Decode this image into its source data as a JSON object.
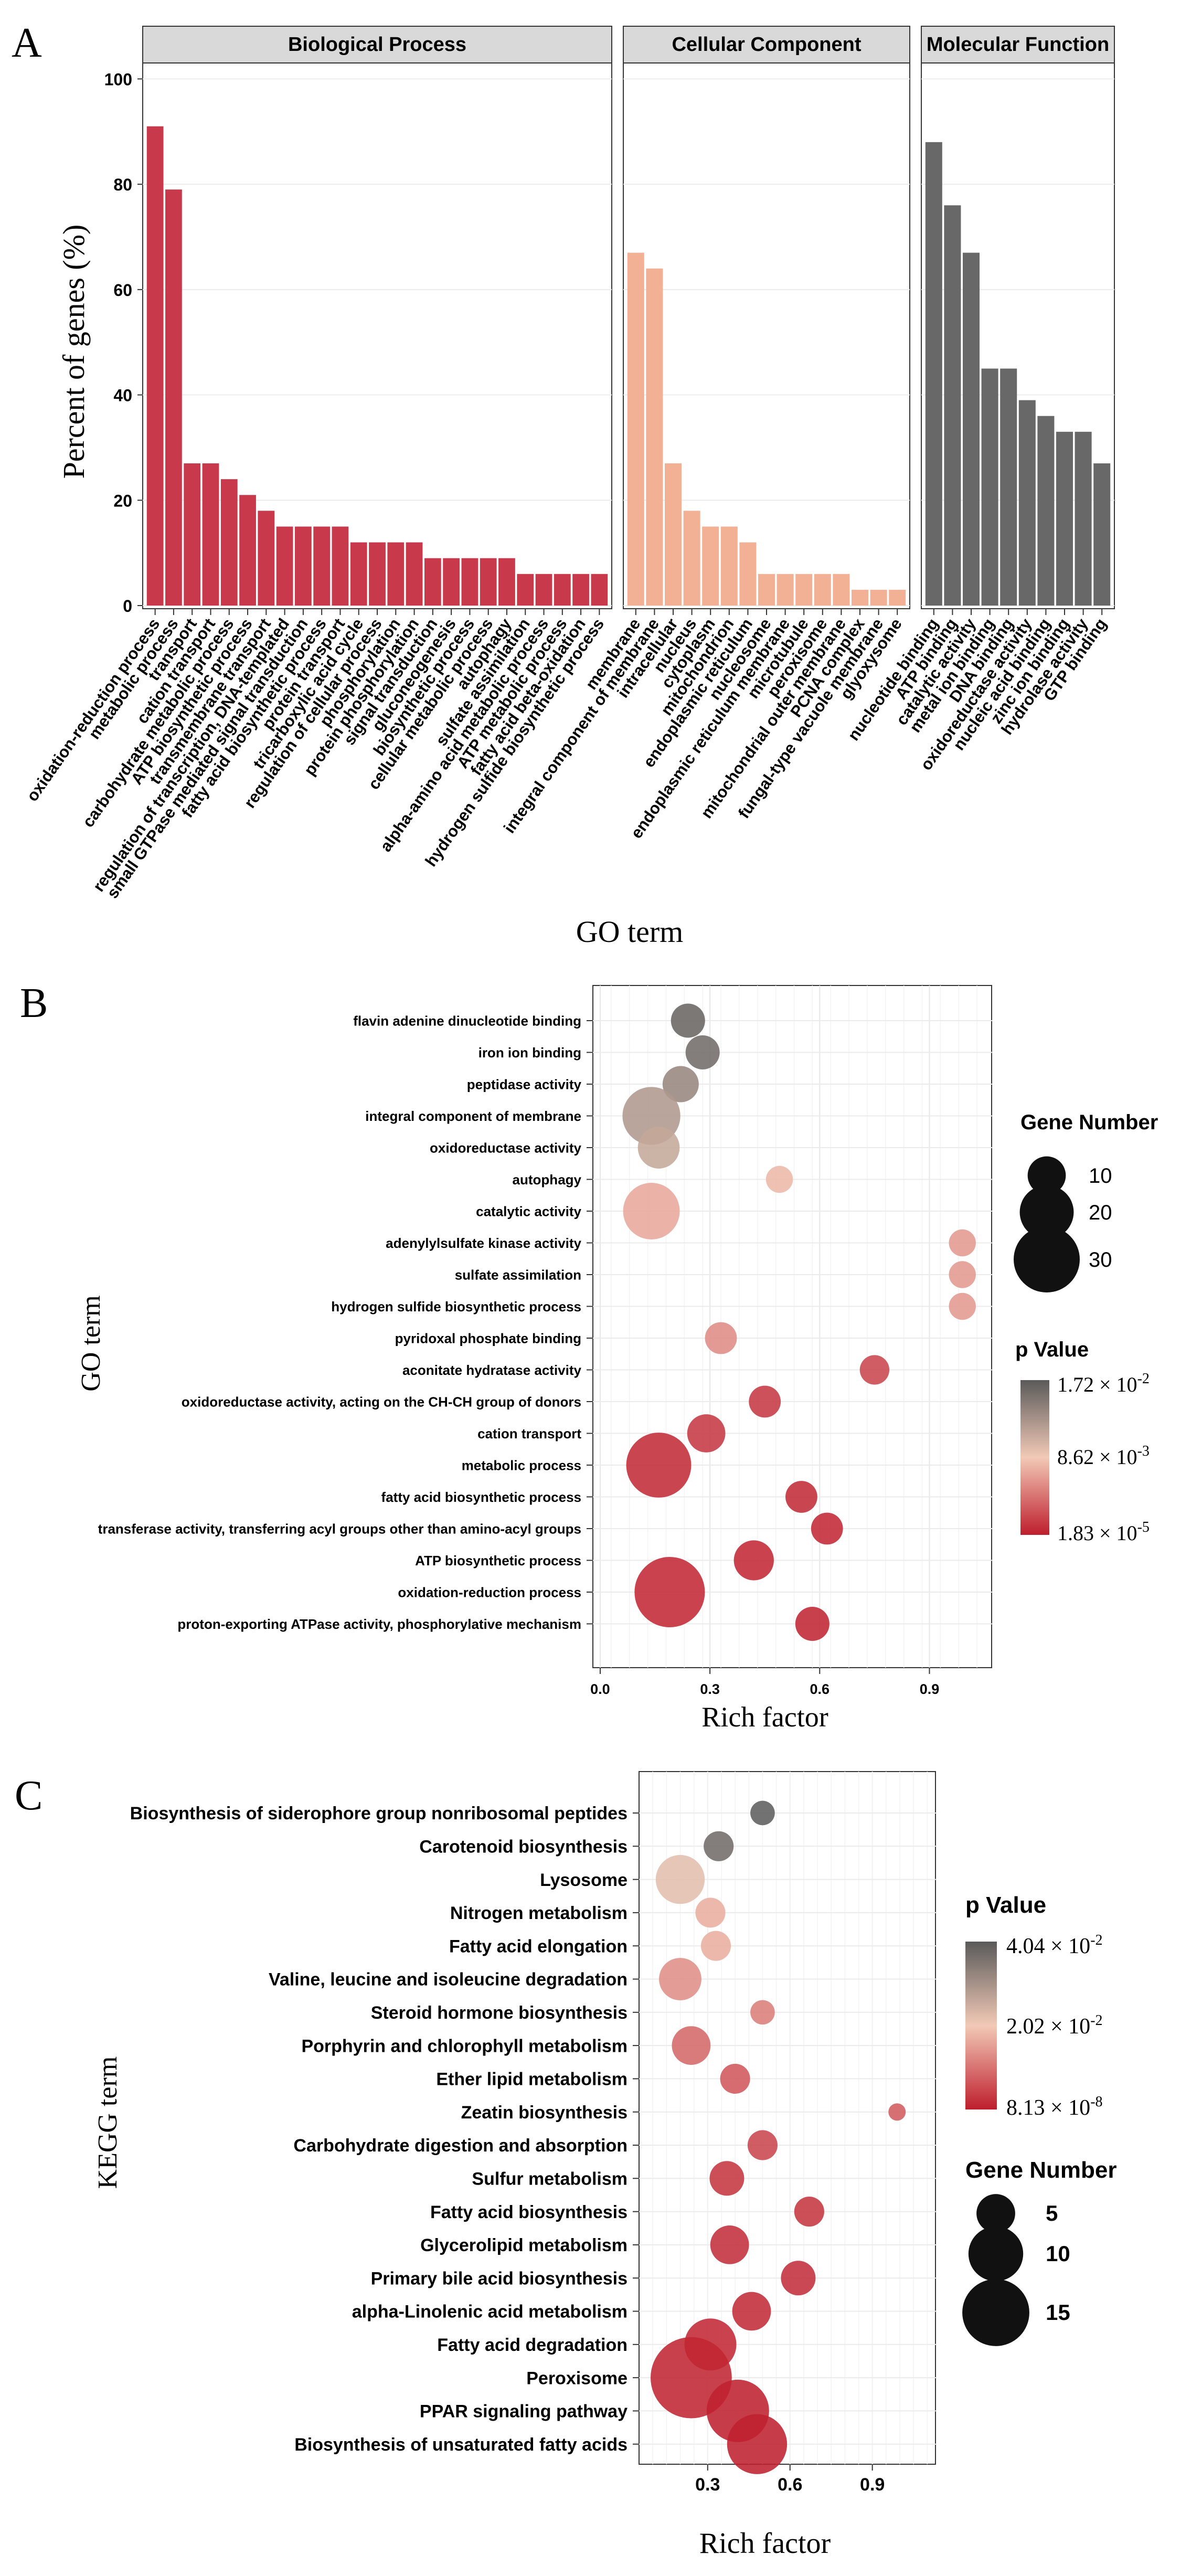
{
  "colors": {
    "bp": "#c8394b",
    "cc": "#f2b095",
    "mf": "#686868",
    "strip_bg": "#d9d9d9",
    "grid": "#ebebeb",
    "grad_high": "#5a5a5a",
    "grad_mid": "#f2c9b6",
    "grad_low": "#be1e2d"
  },
  "chart_data": [
    {
      "panel": "A",
      "type": "bar",
      "title": "",
      "xlabel": "GO term",
      "ylabel": "Percent of genes (%)",
      "ylim": [
        0,
        100
      ],
      "yticks": [
        "0",
        "20",
        "40",
        "60",
        "80",
        "100"
      ],
      "facets": [
        {
          "name": "Biological Process",
          "color": "#c8394b",
          "categories": [
            "oxidation-reduction process",
            "metabolic process",
            "transport",
            "cation transport",
            "carbohydrate metabolic process",
            "ATP biosynthetic process",
            "transmembrane transport",
            "regulation of transcription, DNA-templated",
            "small GTPase mediated signal transduction",
            "fatty acid biosynthetic process",
            "protein transport",
            "tricarboxylic acid cycle",
            "regulation of cellular process",
            "phosphorylation",
            "protein phosphorylation",
            "signal transduction",
            "gluconeogenesis",
            "biosynthetic process",
            "cellular metabolic process",
            "autophagy",
            "sulfate assimilation",
            "alpha-amino acid metabolic process",
            "ATP metabolic process",
            "fatty acid beta-oxidation",
            "hydrogen sulfide biosynthetic process"
          ],
          "values": [
            91,
            79,
            27,
            27,
            24,
            21,
            18,
            15,
            15,
            15,
            15,
            12,
            12,
            12,
            12,
            9,
            9,
            9,
            9,
            9,
            6,
            6,
            6,
            6,
            6
          ]
        },
        {
          "name": "Cellular Component",
          "color": "#f2b095",
          "categories": [
            "membrane",
            "integral component of membrane",
            "intracellular",
            "nucleus",
            "cytoplasm",
            "mitochondrion",
            "endoplasmic reticulum",
            "nucleosome",
            "endoplasmic reticulum membrane",
            "microtubule",
            "peroxisome",
            "mitochondrial outer membrane",
            "PCNA complex",
            "fungal-type vacuole membrane",
            "glyoxysome"
          ],
          "values": [
            67,
            64,
            27,
            18,
            15,
            15,
            12,
            6,
            6,
            6,
            6,
            6,
            3,
            3,
            3
          ]
        },
        {
          "name": "Molecular Function",
          "color": "#686868",
          "categories": [
            "nucleotide binding",
            "ATP binding",
            "catalytic activity",
            "metal ion binding",
            "DNA binding",
            "oxidoreductase activity",
            "nucleic acid binding",
            "zinc ion binding",
            "hydrolase activity",
            "GTP binding"
          ],
          "values": [
            88,
            76,
            67,
            45,
            45,
            39,
            36,
            33,
            33,
            27
          ]
        }
      ]
    },
    {
      "panel": "B",
      "type": "scatter",
      "xlabel": "Rich factor",
      "ylabel": "GO term",
      "xlim": [
        -0.02,
        1.07
      ],
      "xticks": [
        "0.0",
        "0.3",
        "0.6",
        "0.9"
      ],
      "categories": [
        "flavin adenine dinucleotide binding",
        "iron ion binding",
        "peptidase activity",
        "integral component of membrane",
        "oxidoreductase activity",
        "autophagy",
        "catalytic activity",
        "adenylylsulfate kinase activity",
        "sulfate assimilation",
        "hydrogen sulfide biosynthetic process",
        "pyridoxal phosphate binding",
        "aconitate hydratase activity",
        "oxidoreductase activity, acting on the CH-CH group of donors",
        "cation transport",
        "metabolic process",
        "fatty acid biosynthetic process",
        "transferase activity, transferring acyl groups other than amino-acyl groups",
        "ATP biosynthetic process",
        "oxidation-reduction process",
        "proton-exporting ATPase activity, phosphorylative mechanism"
      ],
      "rich_factor": [
        0.24,
        0.28,
        0.22,
        0.14,
        0.16,
        0.49,
        0.14,
        0.99,
        0.99,
        0.99,
        0.33,
        0.75,
        0.45,
        0.29,
        0.16,
        0.55,
        0.62,
        0.42,
        0.19,
        0.58
      ],
      "gene_number": [
        8,
        8,
        9,
        23,
        12,
        5,
        22,
        5,
        5,
        5,
        7,
        6,
        7,
        10,
        29,
        7,
        7,
        11,
        34,
        8
      ],
      "p_value_norm": [
        0.95,
        0.92,
        0.8,
        0.72,
        0.65,
        0.45,
        0.4,
        0.36,
        0.36,
        0.36,
        0.32,
        0.12,
        0.08,
        0.08,
        0.04,
        0.04,
        0.03,
        0.03,
        0.03,
        0.02
      ],
      "legend_size_title": "Gene Number",
      "legend_size_labels": [
        "10",
        "20",
        "30"
      ],
      "legend_color_title": "p Value",
      "legend_color_labels": [
        "1.72 × 10-2",
        "8.62 × 10-3",
        "1.83 × 10-5"
      ]
    },
    {
      "panel": "C",
      "type": "scatter",
      "xlabel": "Rich factor",
      "ylabel": "KEGG term",
      "xlim": [
        0.05,
        1.13
      ],
      "xticks": [
        "0.3",
        "0.6",
        "0.9"
      ],
      "categories": [
        "Biosynthesis of siderophore group nonribosomal peptides",
        "Carotenoid biosynthesis",
        "Lysosome",
        "Nitrogen metabolism",
        "Fatty acid elongation",
        "Valine, leucine and isoleucine degradation",
        "Steroid hormone biosynthesis",
        "Porphyrin and chlorophyll metabolism",
        "Ether lipid metabolism",
        "Zeatin biosynthesis",
        "Carbohydrate digestion and absorption",
        "Sulfur metabolism",
        "Fatty acid biosynthesis",
        "Glycerolipid metabolism",
        "Primary bile acid biosynthesis",
        "alpha-Linolenic acid metabolism",
        "Fatty acid degradation",
        "Peroxisome",
        "PPAR signaling pathway",
        "Biosynthesis of unsaturated fatty acids"
      ],
      "rich_factor": [
        0.5,
        0.34,
        0.2,
        0.31,
        0.33,
        0.2,
        0.5,
        0.24,
        0.4,
        0.99,
        0.5,
        0.37,
        0.67,
        0.38,
        0.63,
        0.46,
        0.31,
        0.24,
        0.41,
        0.48
      ],
      "gene_number": [
        2,
        3,
        8,
        3,
        3,
        6,
        2,
        5,
        3,
        1,
        3,
        4,
        3,
        5,
        4,
        5,
        9,
        22,
        13,
        12
      ],
      "p_value_norm": [
        0.98,
        0.92,
        0.55,
        0.42,
        0.42,
        0.33,
        0.28,
        0.22,
        0.17,
        0.18,
        0.12,
        0.07,
        0.07,
        0.05,
        0.05,
        0.04,
        0.03,
        0.02,
        0.01,
        0.01
      ],
      "legend_color_title": "p Value",
      "legend_color_labels": [
        "4.04 × 10-2",
        "2.02 × 10-2",
        "8.13 × 10-8"
      ],
      "legend_size_title": "Gene Number",
      "legend_size_labels": [
        "5",
        "10",
        "15"
      ]
    }
  ],
  "panel_labels": [
    "A",
    "B",
    "C"
  ]
}
